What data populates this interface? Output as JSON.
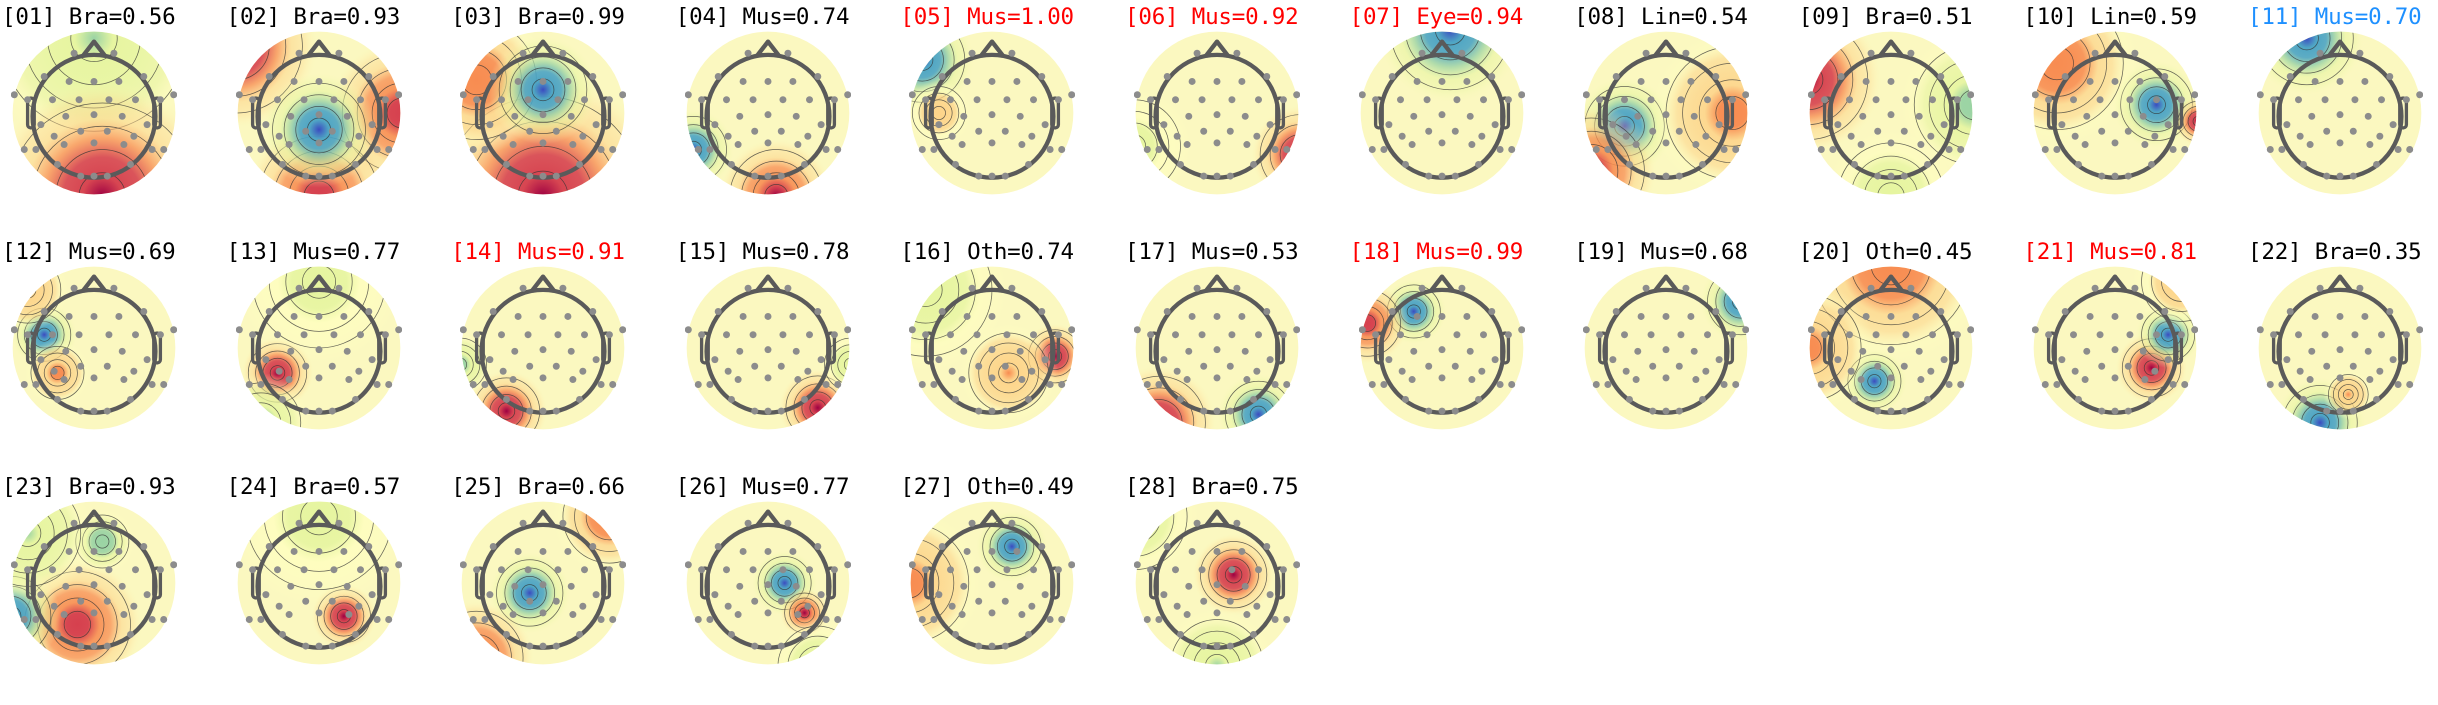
{
  "figure": {
    "title": "",
    "layout": {
      "rows": 3,
      "cols": 11
    },
    "colors": {
      "normal": "#000000",
      "flagged": "#ff0000",
      "highlighted": "#1e90ff",
      "electrode": "#8c8c8c",
      "head_outline": "#5a5a5a",
      "colormap": [
        "#3b4cc0",
        "#4aa3c4",
        "#9ad3a4",
        "#e6f5a0",
        "#ffffbf",
        "#fdd48a",
        "#f88c51",
        "#d6404e",
        "#9e0142"
      ]
    }
  },
  "chart_data": {
    "type": "heatmap",
    "subtype": "EEG ICA component topomaps",
    "title": "",
    "xlabel": "",
    "ylabel": "",
    "label_format": "[NN] Class=probability",
    "class_abbreviations": [
      "Bra",
      "Mus",
      "Eye",
      "Lin",
      "Oth"
    ],
    "components": [
      {
        "id": "01",
        "label": "Bra",
        "prob": 0.56,
        "status": "normal",
        "blobs": [
          {
            "x": 0.5,
            "y": 0.05,
            "v": -0.4,
            "r": 0.7
          },
          {
            "x": 0.55,
            "y": 1.0,
            "v": 1.0,
            "r": 0.7
          }
        ]
      },
      {
        "id": "02",
        "label": "Bra",
        "prob": 0.93,
        "status": "normal",
        "blobs": [
          {
            "x": 0.0,
            "y": 0.1,
            "v": 1.0,
            "r": 0.5
          },
          {
            "x": 1.0,
            "y": 0.5,
            "v": 0.8,
            "r": 0.45
          },
          {
            "x": 0.5,
            "y": 1.0,
            "v": 0.8,
            "r": 0.45
          },
          {
            "x": 0.5,
            "y": 0.6,
            "v": -1.0,
            "r": 0.35
          }
        ]
      },
      {
        "id": "03",
        "label": "Bra",
        "prob": 0.99,
        "status": "normal",
        "blobs": [
          {
            "x": 0.5,
            "y": 1.0,
            "v": 0.95,
            "r": 0.75
          },
          {
            "x": 0.1,
            "y": 0.3,
            "v": 0.6,
            "r": 0.45
          },
          {
            "x": 0.5,
            "y": 0.36,
            "v": -1.0,
            "r": 0.33
          }
        ]
      },
      {
        "id": "04",
        "label": "Mus",
        "prob": 0.74,
        "status": "normal",
        "blobs": [
          {
            "x": 0.05,
            "y": 0.72,
            "v": -1.0,
            "r": 0.25
          },
          {
            "x": 0.55,
            "y": 1.0,
            "v": 0.9,
            "r": 0.35
          }
        ]
      },
      {
        "id": "05",
        "label": "Mus",
        "prob": 1.0,
        "status": "flagged",
        "blobs": [
          {
            "x": 0.08,
            "y": 0.18,
            "v": -1.0,
            "r": 0.32
          },
          {
            "x": 0.18,
            "y": 0.5,
            "v": 0.3,
            "r": 0.2
          }
        ]
      },
      {
        "id": "06",
        "label": "Mus",
        "prob": 0.92,
        "status": "flagged",
        "blobs": [
          {
            "x": 1.0,
            "y": 0.75,
            "v": 1.0,
            "r": 0.3
          },
          {
            "x": 0.0,
            "y": 0.7,
            "v": -0.2,
            "r": 0.35
          }
        ]
      },
      {
        "id": "07",
        "label": "Eye",
        "prob": 0.94,
        "status": "flagged",
        "blobs": [
          {
            "x": 0.55,
            "y": 0.0,
            "v": -1.0,
            "r": 0.45
          }
        ]
      },
      {
        "id": "08",
        "label": "Lin",
        "prob": 0.54,
        "status": "normal",
        "blobs": [
          {
            "x": 0.25,
            "y": 0.58,
            "v": -1.0,
            "r": 0.3
          },
          {
            "x": 0.05,
            "y": 0.85,
            "v": 0.9,
            "r": 0.4
          },
          {
            "x": 0.9,
            "y": 0.5,
            "v": 0.5,
            "r": 0.5
          }
        ]
      },
      {
        "id": "09",
        "label": "Bra",
        "prob": 0.51,
        "status": "normal",
        "blobs": [
          {
            "x": 0.0,
            "y": 0.3,
            "v": 1.0,
            "r": 0.45
          },
          {
            "x": 1.0,
            "y": 0.45,
            "v": -0.55,
            "r": 0.45
          },
          {
            "x": 0.5,
            "y": 1.0,
            "v": -0.3,
            "r": 0.4
          }
        ]
      },
      {
        "id": "10",
        "label": "Lin",
        "prob": 0.59,
        "status": "normal",
        "blobs": [
          {
            "x": 0.75,
            "y": 0.45,
            "v": -1.0,
            "r": 0.27
          },
          {
            "x": 1.0,
            "y": 0.55,
            "v": 1.0,
            "r": 0.15
          },
          {
            "x": 0.15,
            "y": 0.2,
            "v": 0.6,
            "r": 0.5
          }
        ]
      },
      {
        "id": "11",
        "label": "Mus",
        "prob": 0.7,
        "status": "highlighted",
        "blobs": [
          {
            "x": 0.3,
            "y": 0.05,
            "v": -1.0,
            "r": 0.35
          }
        ]
      },
      {
        "id": "12",
        "label": "Mus",
        "prob": 0.69,
        "status": "normal",
        "blobs": [
          {
            "x": 0.2,
            "y": 0.42,
            "v": -1.0,
            "r": 0.2
          },
          {
            "x": 0.28,
            "y": 0.65,
            "v": 0.55,
            "r": 0.2
          },
          {
            "x": 0.1,
            "y": 0.15,
            "v": 0.4,
            "r": 0.25
          }
        ]
      },
      {
        "id": "13",
        "label": "Mus",
        "prob": 0.77,
        "status": "normal",
        "blobs": [
          {
            "x": 0.25,
            "y": 0.65,
            "v": 1.0,
            "r": 0.22
          },
          {
            "x": 0.15,
            "y": 0.95,
            "v": -0.5,
            "r": 0.3
          },
          {
            "x": 0.5,
            "y": 0.1,
            "v": -0.2,
            "r": 0.5
          }
        ]
      },
      {
        "id": "14",
        "label": "Mus",
        "prob": 0.91,
        "status": "flagged",
        "blobs": [
          {
            "x": 0.28,
            "y": 0.88,
            "v": 1.0,
            "r": 0.25
          },
          {
            "x": 0.0,
            "y": 0.6,
            "v": -0.5,
            "r": 0.2
          }
        ]
      },
      {
        "id": "15",
        "label": "Mus",
        "prob": 0.78,
        "status": "normal",
        "blobs": [
          {
            "x": 0.8,
            "y": 0.86,
            "v": 1.0,
            "r": 0.24
          },
          {
            "x": 1.0,
            "y": 0.6,
            "v": -0.3,
            "r": 0.2
          }
        ]
      },
      {
        "id": "16",
        "label": "Oth",
        "prob": 0.74,
        "status": "normal",
        "blobs": [
          {
            "x": 0.88,
            "y": 0.55,
            "v": 1.0,
            "r": 0.2
          },
          {
            "x": 0.6,
            "y": 0.65,
            "v": 0.4,
            "r": 0.3
          },
          {
            "x": 0.1,
            "y": 0.15,
            "v": -0.3,
            "r": 0.5
          }
        ]
      },
      {
        "id": "17",
        "label": "Mus",
        "prob": 0.53,
        "status": "normal",
        "blobs": [
          {
            "x": 0.15,
            "y": 0.95,
            "v": 1.0,
            "r": 0.35
          },
          {
            "x": 0.75,
            "y": 0.9,
            "v": -1.0,
            "r": 0.25
          }
        ]
      },
      {
        "id": "18",
        "label": "Mus",
        "prob": 0.99,
        "status": "flagged",
        "blobs": [
          {
            "x": 0.33,
            "y": 0.28,
            "v": -1.0,
            "r": 0.2
          },
          {
            "x": 0.05,
            "y": 0.35,
            "v": 0.8,
            "r": 0.25
          }
        ]
      },
      {
        "id": "19",
        "label": "Mus",
        "prob": 0.68,
        "status": "normal",
        "blobs": [
          {
            "x": 0.95,
            "y": 0.22,
            "v": -1.0,
            "r": 0.25
          }
        ]
      },
      {
        "id": "20",
        "label": "Oth",
        "prob": 0.45,
        "status": "normal",
        "blobs": [
          {
            "x": 0.4,
            "y": 0.7,
            "v": -1.0,
            "r": 0.2
          },
          {
            "x": 0.5,
            "y": 0.0,
            "v": 0.6,
            "r": 0.6
          },
          {
            "x": 0.0,
            "y": 0.5,
            "v": 0.5,
            "r": 0.4
          }
        ]
      },
      {
        "id": "21",
        "label": "Mus",
        "prob": 0.81,
        "status": "flagged",
        "blobs": [
          {
            "x": 0.72,
            "y": 0.62,
            "v": 1.0,
            "r": 0.22
          },
          {
            "x": 0.82,
            "y": 0.42,
            "v": -1.0,
            "r": 0.2
          },
          {
            "x": 0.9,
            "y": 0.1,
            "v": 0.3,
            "r": 0.3
          }
        ]
      },
      {
        "id": "22",
        "label": "Bra",
        "prob": 0.35,
        "status": "normal",
        "blobs": [
          {
            "x": 0.38,
            "y": 0.95,
            "v": -1.0,
            "r": 0.28
          },
          {
            "x": 0.55,
            "y": 0.78,
            "v": 0.4,
            "r": 0.15
          }
        ]
      },
      {
        "id": "23",
        "label": "Bra",
        "prob": 0.93,
        "status": "normal",
        "blobs": [
          {
            "x": 0.4,
            "y": 0.75,
            "v": 0.85,
            "r": 0.4
          },
          {
            "x": 0.0,
            "y": 0.7,
            "v": -1.0,
            "r": 0.3
          },
          {
            "x": 0.55,
            "y": 0.25,
            "v": -0.6,
            "r": 0.2
          },
          {
            "x": 0.1,
            "y": 0.2,
            "v": -0.4,
            "r": 0.4
          }
        ]
      },
      {
        "id": "24",
        "label": "Bra",
        "prob": 0.57,
        "status": "normal",
        "blobs": [
          {
            "x": 0.65,
            "y": 0.7,
            "v": 1.0,
            "r": 0.2
          },
          {
            "x": 0.5,
            "y": 0.1,
            "v": -0.2,
            "r": 0.55
          }
        ]
      },
      {
        "id": "25",
        "label": "Bra",
        "prob": 0.66,
        "status": "normal",
        "blobs": [
          {
            "x": 0.42,
            "y": 0.56,
            "v": -1.0,
            "r": 0.25
          },
          {
            "x": 0.1,
            "y": 0.95,
            "v": 0.9,
            "r": 0.35
          },
          {
            "x": 0.9,
            "y": 0.1,
            "v": 0.7,
            "r": 0.35
          }
        ]
      },
      {
        "id": "26",
        "label": "Mus",
        "prob": 0.77,
        "status": "normal",
        "blobs": [
          {
            "x": 0.6,
            "y": 0.5,
            "v": -1.0,
            "r": 0.2
          },
          {
            "x": 0.72,
            "y": 0.68,
            "v": 0.9,
            "r": 0.15
          },
          {
            "x": 0.8,
            "y": 1.0,
            "v": -0.3,
            "r": 0.3
          }
        ]
      },
      {
        "id": "27",
        "label": "Oth",
        "prob": 0.49,
        "status": "normal",
        "blobs": [
          {
            "x": 0.62,
            "y": 0.28,
            "v": -1.0,
            "r": 0.22
          },
          {
            "x": 0.0,
            "y": 0.5,
            "v": 0.45,
            "r": 0.45
          }
        ]
      },
      {
        "id": "28",
        "label": "Bra",
        "prob": 0.75,
        "status": "normal",
        "blobs": [
          {
            "x": 0.6,
            "y": 0.45,
            "v": 1.0,
            "r": 0.25
          },
          {
            "x": 0.5,
            "y": 1.0,
            "v": -0.45,
            "r": 0.35
          },
          {
            "x": 0.0,
            "y": 0.1,
            "v": -0.35,
            "r": 0.4
          }
        ]
      }
    ]
  }
}
